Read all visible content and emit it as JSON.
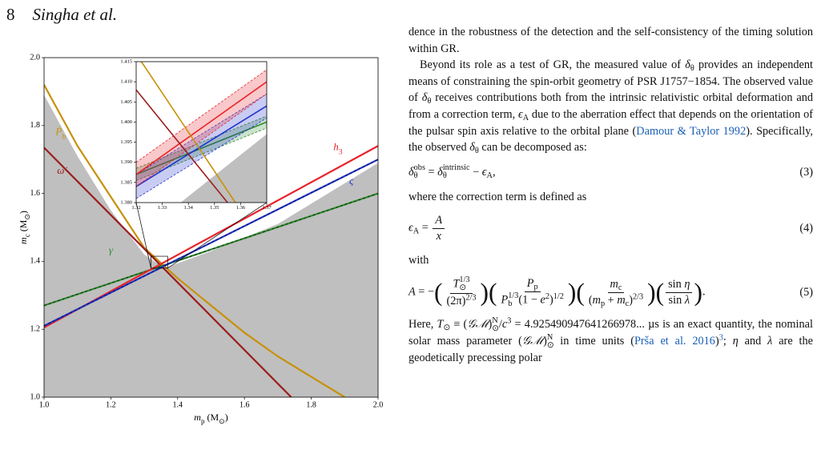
{
  "header": {
    "page": "8",
    "authors": "Singha et al."
  },
  "chart_data": {
    "type": "line",
    "xlabel": [
      {
        "t": "m",
        "s": "i"
      },
      {
        "t": "p",
        "s": "sub"
      },
      " (M",
      {
        "t": "⊙",
        "s": "sub"
      },
      ")"
    ],
    "ylabel": [
      {
        "t": "m",
        "s": "i"
      },
      {
        "t": "c",
        "s": "sub"
      },
      " (M",
      {
        "t": "⊙",
        "s": "sub"
      },
      ")"
    ],
    "xlim": [
      1.0,
      2.0
    ],
    "ylim": [
      1.0,
      2.0
    ],
    "xticks": [
      {
        "value": 1.0,
        "label": "1.0"
      },
      1.2,
      1.4,
      1.6,
      1.8,
      {
        "value": 2.0,
        "label": "2.0"
      }
    ],
    "yticks": [
      {
        "value": 1.0,
        "label": "1.0"
      },
      1.2,
      1.4,
      1.6,
      1.8,
      {
        "value": 2.0,
        "label": "2.0"
      }
    ],
    "shaded_region": {
      "color": "#bfbfbf",
      "x": [
        1.0,
        1.1,
        1.2,
        1.3,
        1.36,
        1.5,
        1.7,
        2.0
      ],
      "values": [
        1.89,
        1.71,
        1.55,
        1.42,
        1.38,
        1.43,
        1.51,
        1.69
      ]
    },
    "series": [
      {
        "label": [
          {
            "t": "Ṗ",
            "s": "i"
          },
          {
            "t": "b",
            "s": "sub"
          }
        ],
        "color": "#c8900a",
        "x": [
          1.0,
          1.1,
          1.2,
          1.3,
          1.4,
          1.5,
          1.6,
          1.7,
          1.8,
          1.9
        ],
        "values": [
          1.92,
          1.74,
          1.59,
          1.44,
          1.35,
          1.27,
          1.19,
          1.12,
          1.06,
          1.0
        ]
      },
      {
        "label": [
          {
            "t": "ω̇",
            "s": "i"
          }
        ],
        "color": "#9b1c1c",
        "x": [
          1.0,
          1.74
        ],
        "values": [
          1.735,
          1.0
        ]
      },
      {
        "label": [
          {
            "t": "γ",
            "s": "i"
          }
        ],
        "color": "#2e8b2e",
        "x": [
          1.0,
          2.0
        ],
        "values": [
          1.27,
          1.6
        ],
        "dashed_center": true
      },
      {
        "label": [
          {
            "t": "h",
            "s": "i"
          },
          {
            "t": "3",
            "s": "sub"
          }
        ],
        "color": "#e8232a",
        "x": [
          1.0,
          2.0
        ],
        "values": [
          1.205,
          1.74
        ]
      },
      {
        "label": [
          {
            "t": "ς",
            "s": "i"
          }
        ],
        "color": "#2233cc",
        "x": [
          1.0,
          2.0
        ],
        "values": [
          1.21,
          1.7
        ],
        "dashed_center": true
      }
    ],
    "inset": {
      "xlim": [
        1.32,
        1.37
      ],
      "ylim": [
        1.38,
        1.415
      ],
      "xticks": [
        1.32,
        1.33,
        1.34,
        1.35,
        1.36,
        1.37
      ],
      "yticks": [
        {
          "value": 1.38,
          "label": "1.380"
        },
        1.385,
        {
          "value": 1.39,
          "label": "1.390"
        },
        1.395,
        {
          "value": 1.4,
          "label": "1.400"
        },
        1.405,
        {
          "value": 1.41,
          "label": "1.410"
        },
        1.415
      ],
      "shaded_region": {
        "color": "#bfbfbf",
        "x": [
          1.337,
          1.37
        ],
        "values": [
          1.38,
          1.397
        ]
      },
      "series": [
        {
          "color": "#2e8b2e",
          "x": [
            1.32,
            1.37
          ],
          "values": [
            1.387,
            1.4
          ],
          "band": 0.0015
        },
        {
          "color": "#2233cc",
          "x": [
            1.32,
            1.37
          ],
          "values": [
            1.384,
            1.404
          ],
          "band": 0.003
        },
        {
          "color": "#e8232a",
          "x": [
            1.32,
            1.37
          ],
          "values": [
            1.387,
            1.41
          ],
          "band": 0.003
        },
        {
          "color": "#9b1c1c",
          "x": [
            1.32,
            1.355
          ],
          "values": [
            1.408,
            1.38
          ]
        },
        {
          "color": "#c8900a",
          "x": [
            1.322,
            1.358
          ],
          "values": [
            1.415,
            1.38
          ]
        }
      ]
    }
  },
  "text": {
    "p1": [
      "dence in the robustness of the detection and the self-consistency of the timing solution within GR."
    ],
    "p2": [
      "Beyond its role as a test of GR, the measured value of ",
      {
        "t": "δ",
        "s": "i"
      },
      {
        "t": "θ",
        "s": "sub"
      },
      " provides an independent means of constraining the spin-orbit geometry of PSR J1757−1854. The observed value of ",
      {
        "t": "δ",
        "s": "i"
      },
      {
        "t": "θ",
        "s": "sub"
      },
      " receives contributions both from the intrinsic relativistic orbital deformation and from a correction term, ",
      {
        "t": "ϵ",
        "s": "i"
      },
      {
        "t": "A",
        "s": "sub"
      },
      " due to the aberration effect that depends on the orientation of the pulsar spin axis relative to the orbital plane (",
      {
        "t": "Damour & Taylor 1992",
        "s": "link"
      },
      "). Specifically, the observed ",
      {
        "t": "δ",
        "s": "i"
      },
      {
        "t": "θ",
        "s": "sub"
      },
      " can be decomposed as:"
    ],
    "eq3": {
      "body": [
        {
          "t": "δ",
          "s": "i"
        },
        {
          "sup": "obs",
          "sub": "θ"
        },
        " = ",
        {
          "t": "δ",
          "s": "i"
        },
        {
          "sup": "intrinsic",
          "sub": "θ"
        },
        " − ",
        {
          "t": "ϵ",
          "s": "i"
        },
        {
          "t": "A",
          "s": "sub"
        },
        ","
      ],
      "number": "(3)"
    },
    "p3": [
      "where the correction term is defined as"
    ],
    "eq4": {
      "body": [
        {
          "t": "ϵ",
          "s": "i"
        },
        {
          "t": "A",
          "s": "sub"
        },
        " = ",
        {
          "frac": [
            [
              {
                "t": "A",
                "s": "i"
              }
            ],
            [
              {
                "t": "x",
                "s": "i"
              }
            ]
          ]
        }
      ],
      "number": "(4)"
    },
    "p4": [
      "with"
    ],
    "eq5": {
      "body": [
        {
          "t": "A",
          "s": "i"
        },
        " = −",
        {
          "big": "("
        },
        {
          "frac": [
            [
              {
                "t": "T",
                "s": "i"
              },
              {
                "sup": "1/3",
                "sub": "⊙"
              }
            ],
            [
              "(2π)",
              {
                "t": "2/3",
                "s": "sup"
              }
            ]
          ]
        },
        {
          "big": ")"
        },
        {
          "big": "("
        },
        {
          "frac": [
            [
              {
                "t": "P",
                "s": "i"
              },
              {
                "t": "p",
                "s": "sub"
              }
            ],
            [
              {
                "t": "P",
                "s": "i"
              },
              {
                "sup": "1/3",
                "sub": "b"
              },
              "(1 − ",
              {
                "t": "e",
                "s": "i"
              },
              {
                "t": "2",
                "s": "sup"
              },
              ")",
              {
                "t": "1/2",
                "s": "sup"
              }
            ]
          ]
        },
        {
          "big": ")"
        },
        {
          "big": "("
        },
        {
          "frac": [
            [
              {
                "t": "m",
                "s": "i"
              },
              {
                "t": "c",
                "s": "sub"
              }
            ],
            [
              "(",
              {
                "t": "m",
                "s": "i"
              },
              {
                "t": "p",
                "s": "sub"
              },
              " + ",
              {
                "t": "m",
                "s": "i"
              },
              {
                "t": "c",
                "s": "sub"
              },
              ")",
              {
                "t": "2/3",
                "s": "sup"
              }
            ]
          ]
        },
        {
          "big": ")"
        },
        {
          "big": "("
        },
        {
          "frac": [
            [
              "sin ",
              {
                "t": "η",
                "s": "i"
              }
            ],
            [
              "sin ",
              {
                "t": "λ",
                "s": "i"
              }
            ]
          ]
        },
        {
          "big": ")"
        },
        "."
      ],
      "number": "(5)"
    },
    "p5": [
      "Here, ",
      {
        "t": "T",
        "s": "i"
      },
      {
        "t": "⊙",
        "s": "sub"
      },
      " ≡ (",
      {
        "t": "𝒢ℳ",
        "s": "i"
      },
      ")",
      {
        "sup": "N",
        "sub": "⊙"
      },
      "/",
      {
        "t": "c",
        "s": "i"
      },
      {
        "t": "3",
        "s": "sup"
      },
      " = 4.925490947641266978... µs is an exact quantity, the nominal solar mass parameter (",
      {
        "t": "𝒢ℳ",
        "s": "i"
      },
      ")",
      {
        "sup": "N",
        "sub": "⊙"
      },
      " in time units (",
      {
        "t": "Prša et al. 2016",
        "s": "link"
      },
      ")",
      {
        "t": "3",
        "s": "suplink"
      },
      "; ",
      {
        "t": "η",
        "s": "i"
      },
      " and ",
      {
        "t": "λ",
        "s": "i"
      },
      " are the geodetically precessing polar"
    ]
  }
}
